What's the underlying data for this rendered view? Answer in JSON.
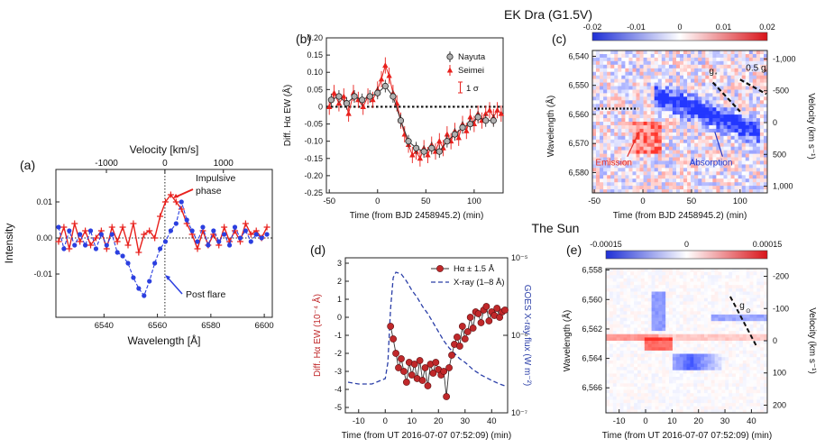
{
  "figure": {
    "section_top": "EK Dra (G1.5V)",
    "section_bottom": "The Sun"
  },
  "colors": {
    "red": "#e8211d",
    "blue": "#2b3fe0",
    "dark_red": "#c0282a",
    "navy": "#2b3fa8",
    "gray": "#666666"
  },
  "chart_data": [
    {
      "id": "a",
      "type": "line",
      "panel_label": "(a)",
      "xlabel": "Wavelength [Å]",
      "ylabel": "Intensity",
      "top_axis_label": "Velocity [km/s]",
      "xlim": [
        6522,
        6603
      ],
      "ylim": [
        -0.022,
        0.019
      ],
      "xticks": [
        6540,
        6560,
        6580,
        6600
      ],
      "xtick_labels": [
        "6540",
        "6560",
        "6580",
        "6600"
      ],
      "yticks": [
        -0.01,
        0,
        0.01
      ],
      "ytick_labels": [
        "-0.01",
        "0.00",
        "0.01"
      ],
      "top_ticks_velocity": [
        -1000,
        0,
        1000
      ],
      "top_tick_labels": [
        "-1000",
        "0",
        "1000"
      ],
      "center_wavelength": 6562.8,
      "annotations": [
        {
          "text": "Impulsive",
          "x": 6569,
          "y": 0.0125
        },
        {
          "text": "phase",
          "x": 6569,
          "y": 0.0095
        },
        {
          "text": "Post flare",
          "x": 6564.5,
          "y": -0.0125
        }
      ],
      "series": [
        {
          "name": "Impulsive phase",
          "color": "red",
          "style": "solid-plus",
          "x": [
            6523,
            6525,
            6527,
            6529,
            6531,
            6533,
            6535,
            6537,
            6539,
            6541,
            6543,
            6545,
            6547,
            6549,
            6551,
            6553,
            6555,
            6557,
            6559,
            6561,
            6563,
            6565,
            6567,
            6569,
            6571,
            6573,
            6575,
            6577,
            6579,
            6581,
            6583,
            6585,
            6587,
            6589,
            6591,
            6593,
            6595,
            6597,
            6599,
            6601
          ],
          "y": [
            -0.001,
            0.003,
            -0.003,
            0.004,
            -0.001,
            0.002,
            -0.002,
            0.0,
            0.002,
            -0.003,
            0.003,
            -0.001,
            0.003,
            -0.002,
            0.004,
            -0.004,
            0.001,
            0.002,
            0.0,
            0.006,
            0.01,
            0.012,
            0.01,
            0.008,
            0.004,
            0.001,
            -0.003,
            0.002,
            -0.002,
            0.001,
            -0.002,
            0.003,
            -0.001,
            0.002,
            -0.001,
            0.004,
            0.001,
            0.002,
            0.0,
            0.003
          ]
        },
        {
          "name": "Post flare",
          "color": "blue",
          "style": "dashed-dot",
          "x": [
            6523,
            6525,
            6527,
            6529,
            6531,
            6533,
            6535,
            6537,
            6539,
            6541,
            6543,
            6545,
            6547,
            6549,
            6551,
            6553,
            6555,
            6557,
            6559,
            6561,
            6563,
            6565,
            6567,
            6569,
            6571,
            6573,
            6575,
            6577,
            6579,
            6581,
            6583,
            6585,
            6587,
            6589,
            6591,
            6593,
            6595,
            6597,
            6599,
            6601
          ],
          "y": [
            0.003,
            -0.003,
            0.002,
            -0.002,
            0.001,
            -0.002,
            0.002,
            -0.003,
            0.001,
            -0.002,
            0.001,
            -0.004,
            -0.005,
            -0.007,
            -0.011,
            -0.014,
            -0.016,
            -0.012,
            -0.007,
            -0.003,
            -0.001,
            0.002,
            0.004,
            0.01,
            0.005,
            0.002,
            -0.001,
            0.003,
            -0.002,
            0.002,
            -0.001,
            0.001,
            -0.002,
            0.003,
            0.0,
            0.002,
            -0.001,
            0.001,
            0.0,
            0.001
          ]
        }
      ]
    },
    {
      "id": "b",
      "type": "scatter",
      "panel_label": "(b)",
      "xlabel": "Time (from BJD 2458945.2) (min)",
      "ylabel": "Diff. Hα EW (Å)",
      "xlim": [
        -53,
        130
      ],
      "ylim": [
        -0.25,
        0.2
      ],
      "xticks": [
        -50,
        0,
        50,
        100
      ],
      "yticks": [
        -0.25,
        -0.2,
        -0.15,
        -0.1,
        -0.05,
        0,
        0.05,
        0.1,
        0.15,
        0.2
      ],
      "ytick_labels": [
        "-0.25",
        "-0.20",
        "-0.15",
        "-0.10",
        "-0.05",
        "0",
        "0.05",
        "0.10",
        "0.15",
        "0.20"
      ],
      "error_bar_label": "1 σ",
      "series": [
        {
          "name": "Nayuta",
          "color": "gray",
          "marker": "open-circle",
          "x": [
            -48,
            -40,
            -32,
            -24,
            -16,
            -8,
            0,
            8,
            16,
            24,
            32,
            40,
            48,
            56,
            64,
            72,
            80,
            88,
            96,
            104,
            112,
            120
          ],
          "y": [
            0.02,
            0.03,
            0.01,
            0.03,
            0.02,
            0.03,
            0.04,
            0.06,
            0.03,
            -0.04,
            -0.1,
            -0.12,
            -0.13,
            -0.12,
            -0.13,
            -0.1,
            -0.08,
            -0.06,
            -0.05,
            -0.03,
            -0.04,
            -0.04
          ]
        },
        {
          "name": "Seimei",
          "color": "red",
          "marker": "filled-triangle",
          "x": [
            -50,
            -45,
            -40,
            -35,
            -30,
            -25,
            -20,
            -15,
            -10,
            -5,
            0,
            4,
            8,
            12,
            16,
            20,
            24,
            28,
            32,
            36,
            40,
            44,
            48,
            52,
            56,
            60,
            64,
            68,
            72,
            76,
            80,
            84,
            88,
            92,
            96,
            100,
            104,
            108,
            112,
            116,
            120,
            124,
            128
          ],
          "y": [
            0.0,
            0.04,
            0.01,
            0.03,
            -0.02,
            0.04,
            0.02,
            0.0,
            0.03,
            0.02,
            0.05,
            0.08,
            0.12,
            0.09,
            0.04,
            0.01,
            -0.04,
            -0.08,
            -0.11,
            -0.14,
            -0.13,
            -0.15,
            -0.12,
            -0.14,
            -0.11,
            -0.13,
            -0.1,
            -0.12,
            -0.08,
            -0.1,
            -0.07,
            -0.09,
            -0.05,
            -0.07,
            -0.03,
            -0.05,
            -0.02,
            -0.04,
            -0.02,
            -0.01,
            -0.03,
            -0.01,
            -0.02
          ]
        }
      ]
    },
    {
      "id": "c",
      "type": "heatmap",
      "panel_label": "(c)",
      "xlabel": "Time (from BJD 2458945.2) (min)",
      "ylabel": "Wavelength (Å)",
      "right_label": "Velocity (km s⁻¹)",
      "xlim": [
        -52,
        128
      ],
      "ylim": [
        6538,
        6587
      ],
      "xticks": [
        -50,
        0,
        50,
        100
      ],
      "yticks": [
        6540,
        6550,
        6560,
        6570,
        6580
      ],
      "ytick_labels": [
        "6,540",
        "6,550",
        "6,560",
        "6,570",
        "6,580"
      ],
      "right_ticks": [
        -1000,
        -500,
        0,
        500,
        1000
      ],
      "right_tick_labels": [
        "-1,000",
        "-500",
        "0",
        "500",
        "1,000"
      ],
      "colorbar_ticks": [
        -0.02,
        -0.01,
        0,
        0.01,
        0.02
      ],
      "colorbar_labels": [
        "-0.02",
        "-0.01",
        "0",
        "0.01",
        "0.02"
      ],
      "annotations": [
        {
          "text": "Emission",
          "x": -30,
          "y": 6577.5
        },
        {
          "text": "Absorption",
          "x": 70,
          "y": 6577.5
        },
        {
          "text": "g",
          "sub": "*",
          "x": 68,
          "y": 6545
        },
        {
          "text": "0.5 g",
          "sub": "*",
          "x": 108,
          "y": 6544
        }
      ]
    },
    {
      "id": "d",
      "type": "line",
      "panel_label": "(d)",
      "xlabel": "Time (from UT 2016-07-07 07:52:09) (min)",
      "ylabel": "Diff. Hα EW (10⁻⁴ Å)",
      "right_label": "GOES X-ray flux (W m⁻²)",
      "xlim": [
        -15,
        46
      ],
      "ylim": [
        -5.3,
        3.3
      ],
      "xticks": [
        -10,
        0,
        10,
        20,
        30,
        40
      ],
      "yticks": [
        -5,
        -4,
        -3,
        -2,
        -1,
        0,
        1,
        2,
        3
      ],
      "right_ticks": [
        "10⁻⁵",
        "10⁻⁶",
        "10⁻⁷"
      ],
      "series": [
        {
          "name": "Hα ± 1.5 Å",
          "color": "dark_red",
          "marker": "filled-circle",
          "x": [
            2,
            3,
            4,
            5,
            6,
            7,
            8,
            9,
            10,
            11,
            12,
            13,
            14,
            15,
            16,
            17,
            18,
            19,
            20,
            21,
            22,
            23,
            24,
            25,
            26,
            27,
            28,
            29,
            30,
            31,
            32,
            33,
            34,
            35,
            36,
            37,
            38,
            39,
            40,
            41,
            42,
            43,
            44,
            45
          ],
          "y": [
            -0.5,
            -1.2,
            -2.0,
            -2.8,
            -2.3,
            -3.0,
            -3.6,
            -2.5,
            -3.2,
            -2.6,
            -3.4,
            -2.4,
            -3.5,
            -2.8,
            -3.8,
            -2.6,
            -3.1,
            -2.5,
            -2.9,
            -3.2,
            -3.0,
            -4.4,
            -2.8,
            -2.1,
            -1.5,
            -1.1,
            -1.6,
            -0.5,
            -1.2,
            -0.8,
            0.0,
            -0.6,
            0.3,
            0.2,
            -0.3,
            0.4,
            0.6,
            -0.2,
            0.3,
            0.1,
            0.5,
            0.0,
            0.3,
            0.4
          ]
        },
        {
          "name": "X-ray (1–8 Å)",
          "color": "navy",
          "style": "dashed",
          "x": [
            -14,
            -10,
            -5,
            0,
            1,
            2,
            3,
            4,
            6,
            8,
            10,
            12,
            14,
            16,
            18,
            20,
            22,
            24,
            26,
            28,
            30,
            33,
            36,
            40,
            43,
            45
          ],
          "y": [
            -3.6,
            -3.7,
            -3.7,
            -3.4,
            -2.5,
            0.5,
            2.2,
            2.5,
            2.4,
            2.0,
            1.5,
            1.1,
            0.6,
            0.2,
            -0.3,
            -0.8,
            -1.3,
            -1.7,
            -2.0,
            -2.3,
            -2.5,
            -2.9,
            -3.2,
            -3.5,
            -3.7,
            -3.8
          ]
        }
      ]
    },
    {
      "id": "e",
      "type": "heatmap",
      "panel_label": "(e)",
      "xlabel": "Time (from UT 2016-07-07 07:52:09) (min)",
      "ylabel": "Wavelength (Å)",
      "right_label": "Velocity (km s⁻¹)",
      "xlim": [
        -15,
        46
      ],
      "ylim": [
        6557.9,
        6567.7
      ],
      "xticks": [
        -10,
        0,
        10,
        20,
        30,
        40
      ],
      "yticks": [
        6558,
        6560,
        6562,
        6564,
        6566
      ],
      "ytick_labels": [
        "6,558",
        "6,560",
        "6,562",
        "6,564",
        "6,566"
      ],
      "right_ticks": [
        -200,
        -100,
        0,
        100,
        200
      ],
      "right_tick_labels": [
        "-200",
        "-100",
        "0",
        "100",
        "200"
      ],
      "colorbar_ticks": [
        -0.00015,
        0,
        0.00015
      ],
      "colorbar_labels": [
        "-0.00015",
        "0",
        "0.00015"
      ],
      "annotations": [
        {
          "text": "g",
          "sub": "⊙",
          "x": 36,
          "y": 6560.5
        }
      ]
    }
  ]
}
